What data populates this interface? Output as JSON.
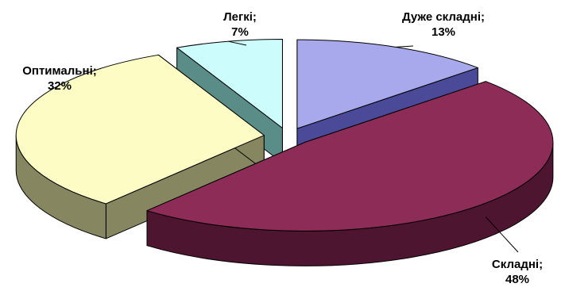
{
  "chart_data": {
    "type": "pie",
    "style": "3d-exploded",
    "slices": [
      {
        "label": "Дуже складні",
        "value": 13,
        "value_text": "13%",
        "color": "#a8a8ec"
      },
      {
        "label": "Складні",
        "value": 48,
        "value_text": "48%",
        "color": "#8e2c58"
      },
      {
        "label": "Оптимальні",
        "value": 32,
        "value_text": "32%",
        "color": "#fcfcc4"
      },
      {
        "label": "Легкі",
        "value": 7,
        "value_text": "7%",
        "color": "#ccfcfc"
      }
    ],
    "side_colors": [
      "#4a4a98",
      "#4e1530",
      "#868660",
      "#5a8c88"
    ],
    "label_separator": ";"
  }
}
